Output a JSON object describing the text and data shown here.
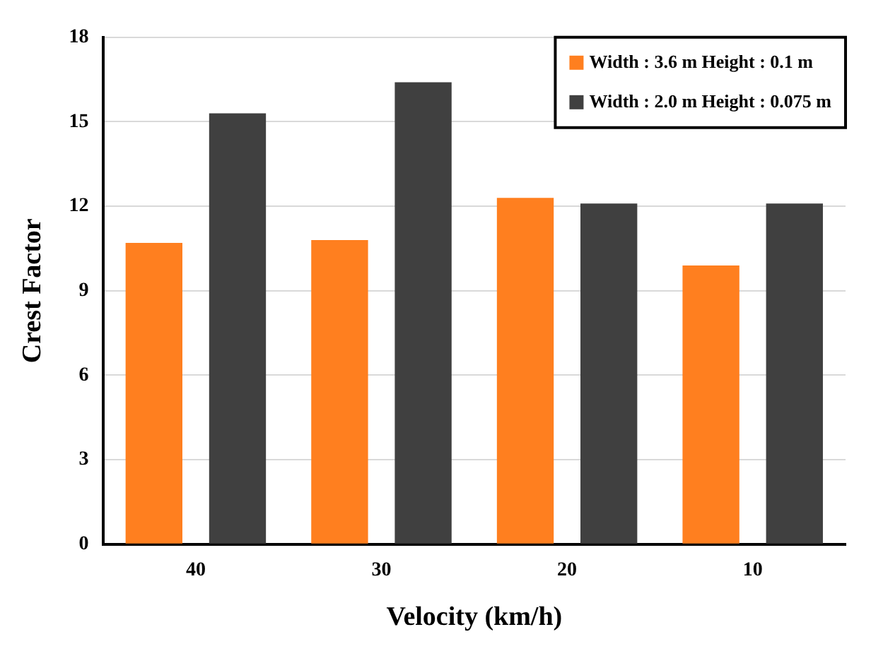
{
  "chart_data": {
    "type": "bar",
    "xlabel": "Velocity (km/h)",
    "ylabel": "Crest Factor",
    "categories": [
      "40",
      "30",
      "20",
      "10"
    ],
    "series": [
      {
        "name": "Width : 3.6 m Height : 0.1 m",
        "color": "#ff7f1f",
        "values": [
          10.7,
          10.8,
          12.3,
          9.9
        ]
      },
      {
        "name": "Width : 2.0 m Height : 0.075 m",
        "color": "#404040",
        "values": [
          15.3,
          16.4,
          12.1,
          12.1
        ]
      }
    ],
    "ylim": [
      0,
      18
    ],
    "yticks": [
      0,
      3,
      6,
      9,
      12,
      15,
      18
    ],
    "grid": "y",
    "legend": "top right"
  }
}
